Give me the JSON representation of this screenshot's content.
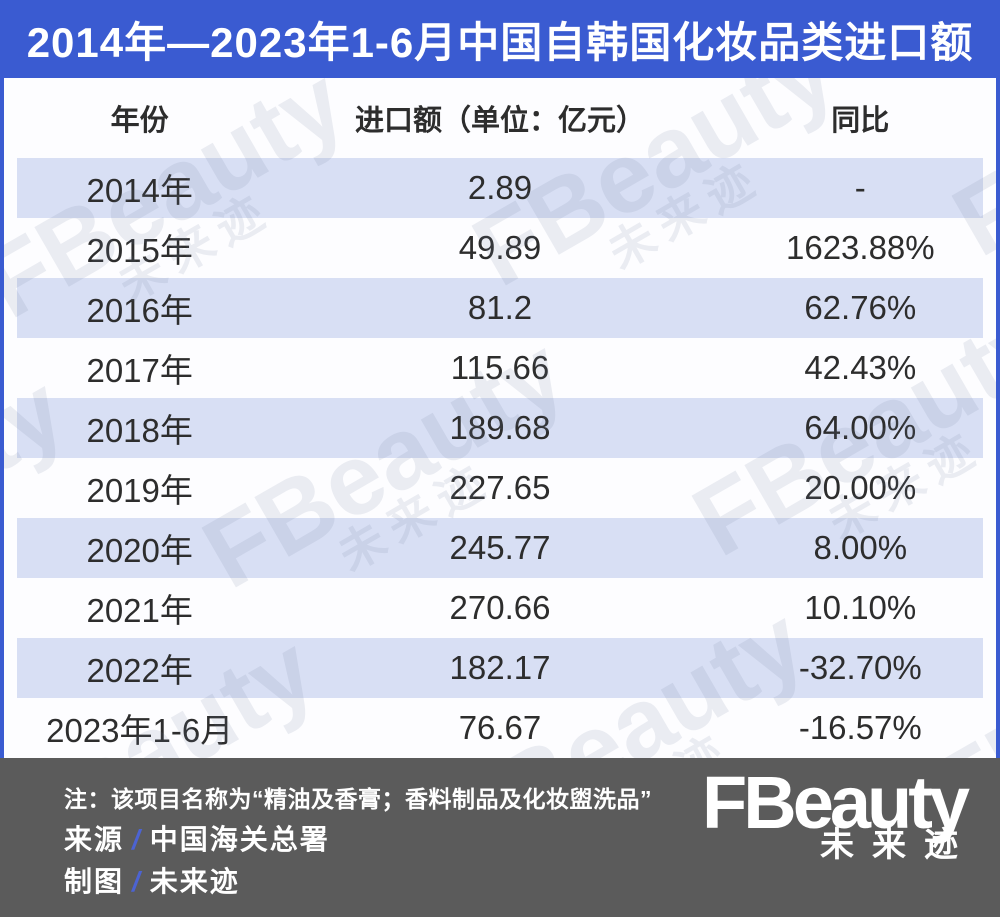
{
  "title": "2014年—2023年1-6月中国自韩国化妆品类进口额",
  "chart_data": {
    "type": "table",
    "title": "2014年—2023年1-6月中国自韩国化妆品类进口额",
    "columns": [
      "年份",
      "进口额（单位：亿元）",
      "同比"
    ],
    "rows": [
      {
        "year": "2014年",
        "import_value": "2.89",
        "yoy": "-"
      },
      {
        "year": "2015年",
        "import_value": "49.89",
        "yoy": "1623.88%"
      },
      {
        "year": "2016年",
        "import_value": "81.2",
        "yoy": "62.76%"
      },
      {
        "year": "2017年",
        "import_value": "115.66",
        "yoy": "42.43%"
      },
      {
        "year": "2018年",
        "import_value": "189.68",
        "yoy": "64.00%"
      },
      {
        "year": "2019年",
        "import_value": "227.65",
        "yoy": "20.00%"
      },
      {
        "year": "2020年",
        "import_value": "245.77",
        "yoy": "8.00%"
      },
      {
        "year": "2021年",
        "import_value": "270.66",
        "yoy": "10.10%"
      },
      {
        "year": "2022年",
        "import_value": "182.17",
        "yoy": "-32.70%"
      },
      {
        "year": "2023年1-6月",
        "import_value": "76.67",
        "yoy": "-16.57%"
      }
    ]
  },
  "footer": {
    "note": "注：该项目名称为“精油及香膏；香料制品及化妆盥洗品”",
    "source_label": "来源",
    "separator": "/",
    "source_value": "中国海关总署",
    "credit_label": "制图",
    "credit_value": "未来迹"
  },
  "logo": {
    "wordmark": "FBeauty",
    "subtext": "未来迹"
  },
  "watermark": {
    "wordmark": "FBeauty",
    "subtext": "未来迹"
  },
  "colors": {
    "accent_blue": "#3A5BD1",
    "row_alt": "#D8DFF4",
    "footer_bg": "#5B5B5B",
    "text_dark": "#2D2D2D",
    "slash_blue": "#4C63D2"
  }
}
